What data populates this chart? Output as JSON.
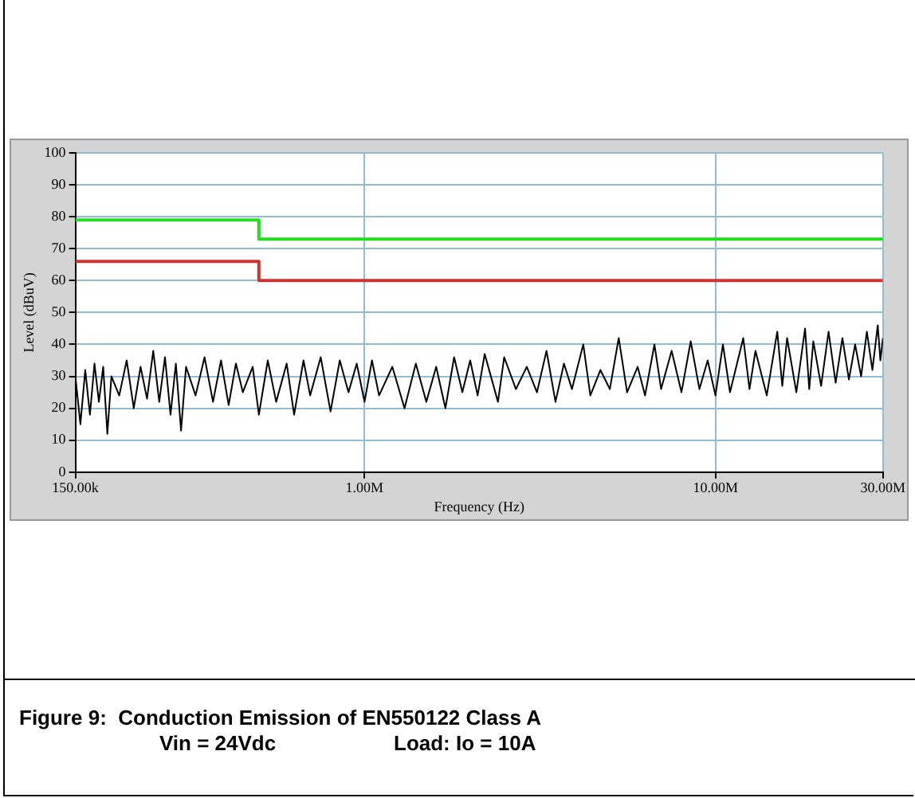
{
  "chart_data": {
    "type": "line",
    "title": "Figure 9:  Conduction Emission of EN550122 Class A",
    "annotations": [
      "Vin = 24Vdc",
      "Load: Io = 10A"
    ],
    "xlabel": "Frequency (Hz)",
    "ylabel": "Level (dBuV)",
    "log": "x",
    "xlim": [
      150000,
      30000000
    ],
    "xticks": [
      {
        "value": 150000,
        "label": "150.00k"
      },
      {
        "value": 1000000,
        "label": "1.00M"
      },
      {
        "value": 10000000,
        "label": "10.00M"
      },
      {
        "value": 30000000,
        "label": "30.00M"
      }
    ],
    "ylim": [
      0,
      100
    ],
    "yticks": [
      0,
      10,
      20,
      30,
      40,
      50,
      60,
      70,
      80,
      90,
      100
    ],
    "grid": true,
    "legend": false,
    "marker": "none",
    "series": [
      {
        "type": "step",
        "color": "#22dd22",
        "x": [
          150000,
          500000,
          30000000
        ],
        "values": [
          79,
          73,
          73
        ]
      },
      {
        "type": "step",
        "color": "#cc3333",
        "x": [
          150000,
          500000,
          30000000
        ],
        "values": [
          66,
          60,
          60
        ]
      },
      {
        "color": "#000000",
        "x": [
          150000,
          155000,
          160000,
          165000,
          170000,
          175000,
          180000,
          185000,
          190000,
          200000,
          210000,
          220000,
          230000,
          240000,
          250000,
          260000,
          270000,
          280000,
          290000,
          300000,
          310000,
          330000,
          350000,
          370000,
          390000,
          410000,
          430000,
          450000,
          480000,
          500000,
          530000,
          560000,
          600000,
          630000,
          670000,
          700000,
          750000,
          800000,
          850000,
          900000,
          950000,
          1000000,
          1050000,
          1100000,
          1200000,
          1300000,
          1400000,
          1500000,
          1600000,
          1700000,
          1800000,
          1900000,
          2000000,
          2100000,
          2200000,
          2400000,
          2500000,
          2700000,
          2900000,
          3100000,
          3300000,
          3500000,
          3700000,
          3900000,
          4200000,
          4400000,
          4700000,
          5000000,
          5300000,
          5600000,
          6000000,
          6300000,
          6700000,
          7000000,
          7500000,
          8000000,
          8500000,
          9000000,
          9500000,
          10000000,
          10500000,
          11000000,
          12000000,
          12500000,
          13000000,
          14000000,
          15000000,
          15500000,
          16000000,
          17000000,
          18000000,
          18500000,
          19000000,
          20000000,
          21000000,
          22000000,
          23000000,
          24000000,
          25000000,
          26000000,
          27000000,
          28000000,
          29000000,
          29500000,
          30000000
        ],
        "values": [
          30,
          15,
          32,
          18,
          34,
          22,
          33,
          12,
          30,
          24,
          35,
          20,
          33,
          23,
          38,
          22,
          36,
          18,
          34,
          13,
          33,
          24,
          36,
          22,
          35,
          21,
          34,
          25,
          33,
          18,
          35,
          22,
          34,
          18,
          35,
          24,
          36,
          19,
          35,
          25,
          34,
          22,
          35,
          24,
          33,
          20,
          34,
          22,
          33,
          20,
          36,
          25,
          35,
          24,
          37,
          22,
          36,
          26,
          33,
          25,
          38,
          22,
          34,
          26,
          40,
          24,
          32,
          26,
          42,
          25,
          33,
          24,
          40,
          26,
          38,
          25,
          41,
          26,
          35,
          24,
          40,
          25,
          42,
          26,
          38,
          24,
          44,
          27,
          42,
          25,
          45,
          26,
          41,
          27,
          44,
          28,
          42,
          29,
          40,
          30,
          44,
          32,
          46,
          35,
          42
        ]
      }
    ]
  }
}
